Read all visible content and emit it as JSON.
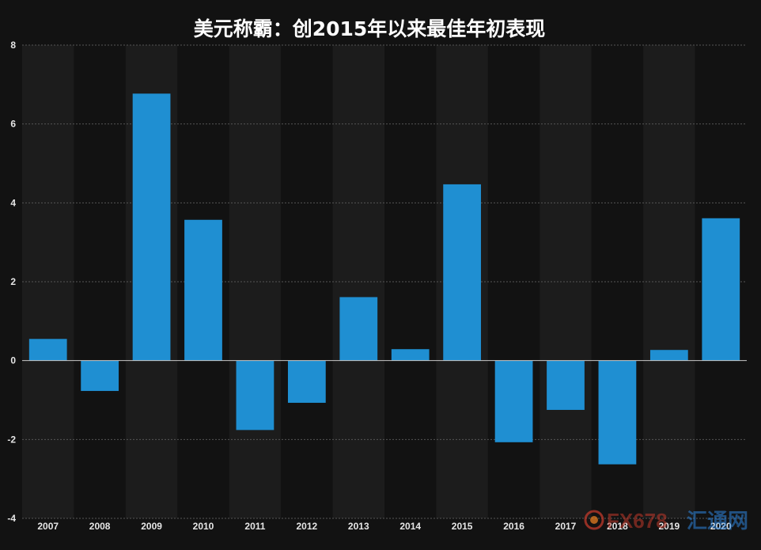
{
  "chart_data": {
    "type": "bar",
    "title": "美元称霸：创2015年以来最佳年初表现",
    "categories": [
      "2007",
      "2008",
      "2009",
      "2010",
      "2011",
      "2012",
      "2013",
      "2014",
      "2015",
      "2016",
      "2017",
      "2018",
      "2019",
      "2020"
    ],
    "values": [
      0.55,
      -0.77,
      6.77,
      3.57,
      -1.76,
      -1.07,
      1.61,
      0.29,
      4.47,
      -2.07,
      -1.25,
      -2.63,
      0.27,
      3.61
    ],
    "yticks": [
      "8",
      "6",
      "4",
      "2",
      "0",
      "-2",
      "-4"
    ],
    "ylim": [
      -4,
      8
    ],
    "grid": true,
    "legend": "none",
    "colors": {
      "bar": "#1f8fd2",
      "background": "#121212",
      "band": "#1c1c1c",
      "grid": "#555555",
      "zero_line": "#c8c8c8"
    }
  },
  "watermark": {
    "brand": "FX678",
    "suffix": "汇通网"
  }
}
